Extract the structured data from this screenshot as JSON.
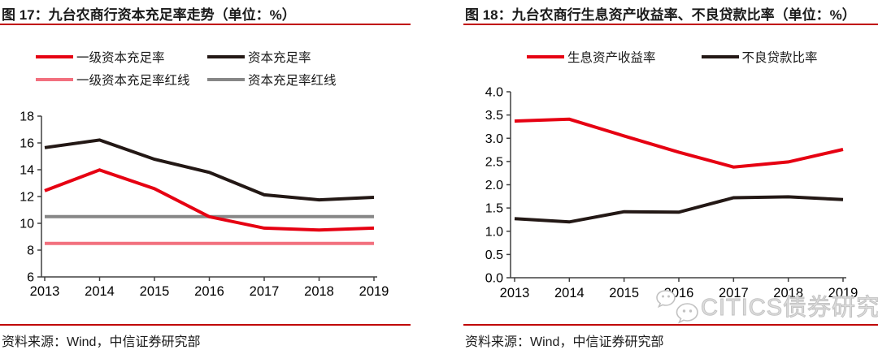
{
  "panels": [
    {
      "title": "图 17：九台农商行资本充足率走势（单位：%）",
      "source": "资料来源：Wind，中信证券研究部"
    },
    {
      "title": "图 18：九台农商行生息资产收益率、不良贷款比率（单位：%）",
      "source": "资料来源：Wind，中信证券研究部"
    }
  ],
  "watermark": {
    "text": "CITICS债券研究",
    "icon": "wechat-icon",
    "color": "#c6c6c6"
  },
  "colors": {
    "accent_red": "#c00000",
    "line_red": "#e60012",
    "line_black": "#231815",
    "line_pink": "#f2707e",
    "line_gray": "#878787",
    "axis": "#404040",
    "label": "#000000"
  },
  "chart_data": [
    {
      "type": "line",
      "title": "图 17：九台农商行资本充足率走势（单位：%）",
      "unit": "%",
      "categories": [
        "2013",
        "2014",
        "2015",
        "2016",
        "2017",
        "2018",
        "2019"
      ],
      "series": [
        {
          "name": "一级资本充足率",
          "color": "#e60012",
          "values": [
            12.43,
            13.98,
            12.58,
            10.49,
            9.64,
            9.5,
            9.64
          ]
        },
        {
          "name": "资本充足率",
          "color": "#231815",
          "values": [
            15.65,
            16.22,
            14.78,
            13.8,
            12.13,
            11.75,
            11.94
          ]
        },
        {
          "name": "一级资本充足率红线",
          "color": "#f2707e",
          "values": [
            8.5,
            8.5,
            8.5,
            8.5,
            8.5,
            8.5,
            8.5
          ]
        },
        {
          "name": "资本充足率红线",
          "color": "#878787",
          "values": [
            10.5,
            10.5,
            10.5,
            10.5,
            10.5,
            10.5,
            10.5
          ]
        }
      ],
      "ylim": [
        6,
        18
      ],
      "ytick_step": 2,
      "yticks": [
        "18",
        "16",
        "14",
        "12",
        "10",
        "8",
        "6"
      ],
      "grid": false,
      "legend_position": "top"
    },
    {
      "type": "line",
      "title": "图 18：九台农商行生息资产收益率、不良贷款比率（单位：%）",
      "unit": "%",
      "categories": [
        "2013",
        "2014",
        "2015",
        "2016",
        "2017",
        "2018",
        "2019"
      ],
      "series": [
        {
          "name": "生息资产收益率",
          "color": "#e60012",
          "values": [
            3.37,
            3.41,
            3.05,
            2.7,
            2.38,
            2.49,
            2.76
          ]
        },
        {
          "name": "不良贷款比率",
          "color": "#231815",
          "values": [
            1.27,
            1.2,
            1.42,
            1.41,
            1.72,
            1.74,
            1.68
          ]
        }
      ],
      "ylim": [
        0,
        4
      ],
      "ytick_step": 0.5,
      "yticks": [
        "4.0",
        "3.5",
        "3.0",
        "2.5",
        "2.0",
        "1.5",
        "1.0",
        "0.5",
        "0.0"
      ],
      "grid": false,
      "legend_position": "top"
    }
  ]
}
